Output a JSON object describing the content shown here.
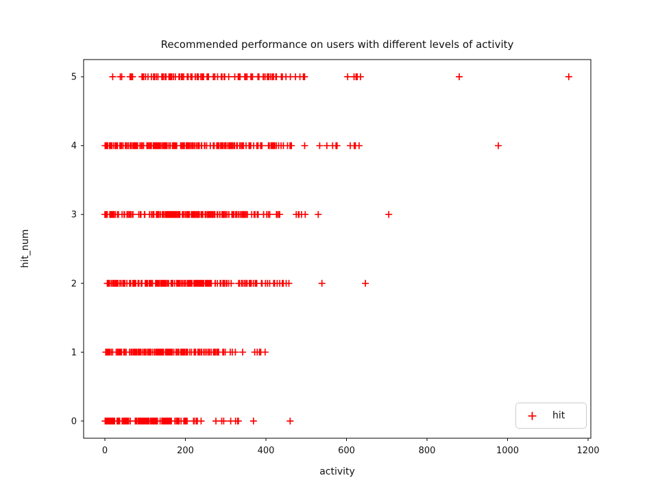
{
  "figure": {
    "background": "#ffffff",
    "marker_color": "#ff0000",
    "axis_color": "#000000",
    "legend_border_color": "#cccccc"
  },
  "chart_data": {
    "type": "scatter",
    "title": "Recommended performance on users with different levels of activity",
    "xlabel": "activity",
    "ylabel": "hit_num",
    "xlim": [
      -52.8,
      1206.8
    ],
    "ylim": [
      -0.25,
      5.25
    ],
    "xticks": [
      0,
      200,
      400,
      600,
      800,
      1000,
      1200
    ],
    "yticks": [
      0,
      1,
      2,
      3,
      4,
      5
    ],
    "grid": false,
    "legend": {
      "label": "hit",
      "marker": "plus",
      "color": "#ff0000",
      "position": "lower right"
    },
    "series": [
      {
        "name": "hit",
        "marker": "plus",
        "color": "#ff0000",
        "rows": [
          {
            "hit_num": 0,
            "clusters": [
              {
                "min": 0,
                "max": 175,
                "count": 95
              },
              {
                "min": 175,
                "max": 205,
                "count": 12
              },
              {
                "min": 214,
                "max": 252,
                "count": 5
              },
              {
                "min": 266,
                "max": 340,
                "count": 7
              }
            ],
            "outliers": [
              369,
              460
            ]
          },
          {
            "hit_num": 1,
            "clusters": [
              {
                "min": 0,
                "max": 225,
                "count": 115
              },
              {
                "min": 225,
                "max": 330,
                "count": 30
              },
              {
                "min": 336,
                "max": 400,
                "count": 6
              }
            ],
            "outliers": []
          },
          {
            "hit_num": 2,
            "clusters": [
              {
                "min": 0,
                "max": 267,
                "count": 135
              },
              {
                "min": 267,
                "max": 410,
                "count": 36
              },
              {
                "min": 412,
                "max": 458,
                "count": 8
              }
            ],
            "outliers": [
              539,
              647
            ]
          },
          {
            "hit_num": 3,
            "clusters": [
              {
                "min": 0,
                "max": 352,
                "count": 165
              },
              {
                "min": 352,
                "max": 435,
                "count": 20
              },
              {
                "min": 459,
                "max": 534,
                "count": 6
              }
            ],
            "outliers": [
              705
            ]
          },
          {
            "hit_num": 4,
            "clusters": [
              {
                "min": 0,
                "max": 330,
                "count": 175
              },
              {
                "min": 330,
                "max": 470,
                "count": 42
              },
              {
                "min": 480,
                "max": 590,
                "count": 6
              },
              {
                "min": 600,
                "max": 648,
                "count": 4
              }
            ],
            "outliers": [
              977
            ]
          },
          {
            "hit_num": 5,
            "clusters": [
              {
                "min": 14,
                "max": 70,
                "count": 8
              },
              {
                "min": 88,
                "max": 300,
                "count": 62
              },
              {
                "min": 300,
                "max": 430,
                "count": 30
              },
              {
                "min": 432,
                "max": 505,
                "count": 10
              },
              {
                "min": 600,
                "max": 665,
                "count": 5
              }
            ],
            "outliers": [
              880,
              1152
            ]
          }
        ]
      }
    ]
  }
}
